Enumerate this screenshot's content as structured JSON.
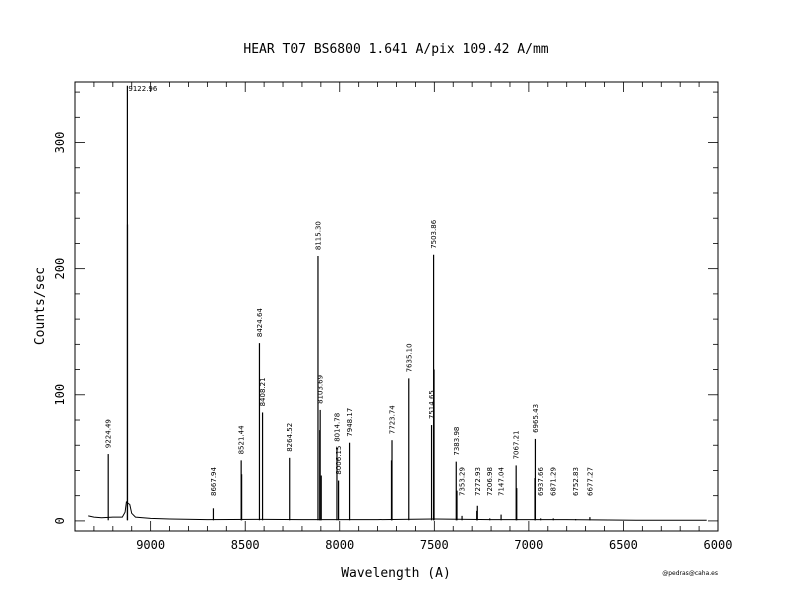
{
  "chart_data": {
    "type": "line",
    "title": "HEAR  T07  BS6800  1.641 A/pix  109.42 A/mm",
    "xlabel": "Wavelength (A)",
    "ylabel": "Counts/sec",
    "xlim": [
      9400,
      6000
    ],
    "ylim": [
      -8,
      348
    ],
    "x_ticks": [
      9000,
      8500,
      8000,
      7500,
      7000,
      6500,
      6000
    ],
    "x_tick_labels": [
      "9000",
      "8500",
      "8000",
      "7500",
      "7000",
      "6500",
      "6000"
    ],
    "y_ticks": [
      0,
      100,
      200,
      300
    ],
    "y_tick_labels": [
      "0",
      "100",
      "200",
      "300"
    ],
    "grid": false,
    "credit": "@pedras@caha.es",
    "continuum": [
      [
        9330,
        4
      ],
      [
        9300,
        3
      ],
      [
        9260,
        2.5
      ],
      [
        9200,
        3
      ],
      [
        9150,
        3
      ],
      [
        9135,
        7
      ],
      [
        9128,
        15
      ],
      [
        9110,
        13
      ],
      [
        9100,
        6
      ],
      [
        9080,
        3
      ],
      [
        9000,
        2
      ],
      [
        8900,
        1.5
      ],
      [
        8700,
        1
      ],
      [
        8400,
        1.2
      ],
      [
        8200,
        1
      ],
      [
        7800,
        1
      ],
      [
        7500,
        1.5
      ],
      [
        7200,
        1
      ],
      [
        6800,
        1
      ],
      [
        6400,
        0.5
      ],
      [
        6060,
        0.5
      ]
    ],
    "lines": [
      {
        "x": 9224.49,
        "y": 53,
        "label": "9224.49"
      },
      {
        "x": 9122.96,
        "y": 345,
        "label": "9122.96"
      },
      {
        "x": 9122.3,
        "y": 235
      },
      {
        "x": 8667.94,
        "y": 10,
        "label": "8667.94"
      },
      {
        "x": 8521.44,
        "y": 48,
        "label": "8521.44"
      },
      {
        "x": 8519.0,
        "y": 37
      },
      {
        "x": 8424.64,
        "y": 141,
        "label": "8424.64"
      },
      {
        "x": 8408.21,
        "y": 86,
        "label": "8408.21"
      },
      {
        "x": 8264.52,
        "y": 50,
        "label": "8264.52"
      },
      {
        "x": 8115.3,
        "y": 210,
        "label": "8115.30"
      },
      {
        "x": 8103.69,
        "y": 88,
        "label": "8103.69"
      },
      {
        "x": 8106.0,
        "y": 72
      },
      {
        "x": 8098.0,
        "y": 36
      },
      {
        "x": 8014.78,
        "y": 58,
        "label": "8014.78"
      },
      {
        "x": 8006.15,
        "y": 32,
        "label": "8006.15"
      },
      {
        "x": 7948.17,
        "y": 62,
        "label": "7948.17"
      },
      {
        "x": 7723.74,
        "y": 64,
        "label": "7723.74"
      },
      {
        "x": 7726.5,
        "y": 48
      },
      {
        "x": 7635.1,
        "y": 113,
        "label": "7635.10"
      },
      {
        "x": 7514.65,
        "y": 76,
        "label": "7514.65"
      },
      {
        "x": 7503.86,
        "y": 211,
        "label": "7503.86"
      },
      {
        "x": 7501.5,
        "y": 120
      },
      {
        "x": 7383.98,
        "y": 47,
        "label": "7383.98"
      },
      {
        "x": 7380.0,
        "y": 24
      },
      {
        "x": 7353.29,
        "y": 4,
        "label": "7353.29"
      },
      {
        "x": 7272.93,
        "y": 12,
        "label": "7272.93"
      },
      {
        "x": 7276.0,
        "y": 8
      },
      {
        "x": 7206.98,
        "y": 2,
        "label": "7206.98"
      },
      {
        "x": 7147.04,
        "y": 5,
        "label": "7147.04"
      },
      {
        "x": 7067.21,
        "y": 44,
        "label": "7067.21"
      },
      {
        "x": 7064.0,
        "y": 26
      },
      {
        "x": 6965.43,
        "y": 65,
        "label": "6965.43"
      },
      {
        "x": 6967.5,
        "y": 34
      },
      {
        "x": 6937.66,
        "y": 2,
        "label": "6937.66"
      },
      {
        "x": 6871.29,
        "y": 2,
        "label": "6871.29"
      },
      {
        "x": 6752.83,
        "y": 1.5,
        "label": "6752.83"
      },
      {
        "x": 6677.27,
        "y": 3,
        "label": "6677.27"
      }
    ]
  }
}
